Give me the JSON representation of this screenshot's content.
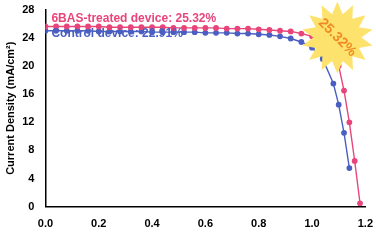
{
  "chart_data": {
    "type": "line",
    "y_label": "Current Density (mA/cm²)",
    "x": [
      0,
      0.04,
      0.08,
      0.12,
      0.16,
      0.2,
      0.24,
      0.28,
      0.32,
      0.36,
      0.4,
      0.44,
      0.48,
      0.52,
      0.56,
      0.6,
      0.64,
      0.68,
      0.72,
      0.76,
      0.8,
      0.84,
      0.88,
      0.92,
      0.96,
      1.0,
      1.04,
      1.08,
      1.1,
      1.12,
      1.14,
      1.16,
      1.18
    ],
    "series": [
      {
        "name": "6BAS-treated device: 25.32%",
        "color": "#e8457a",
        "marker": "circle",
        "values": [
          25.6,
          25.6,
          25.6,
          25.6,
          25.6,
          25.6,
          25.5,
          25.5,
          25.5,
          25.5,
          25.5,
          25.5,
          25.4,
          25.4,
          25.4,
          25.4,
          25.4,
          25.3,
          25.3,
          25.3,
          25.2,
          25.1,
          25.0,
          24.9,
          24.6,
          24.2,
          23.5,
          22.2,
          20.0,
          16.5,
          12.0,
          6.5,
          0.5
        ]
      },
      {
        "name": "Control device: 22.91%",
        "color": "#4a5fc1",
        "marker": "circle",
        "values": [
          25.0,
          25.0,
          25.0,
          25.0,
          25.0,
          24.9,
          24.9,
          24.9,
          24.9,
          24.9,
          24.8,
          24.8,
          24.8,
          24.8,
          24.8,
          24.7,
          24.7,
          24.7,
          24.6,
          24.6,
          24.5,
          24.4,
          24.2,
          23.9,
          23.4,
          22.6,
          21.0,
          17.5,
          14.5,
          10.5,
          5.5,
          null,
          null
        ]
      }
    ],
    "xlim": [
      0,
      1.2
    ],
    "xticks": [
      {
        "value": 0,
        "label": "0.0"
      },
      {
        "value": 0.2,
        "label": "0.2"
      },
      {
        "value": 0.4,
        "label": "0.4"
      },
      {
        "value": 0.6,
        "label": "0.6"
      },
      {
        "value": 0.8,
        "label": "0.8"
      },
      {
        "value": 1.0,
        "label": "1.0"
      },
      {
        "value": 1.2,
        "label": "1.2"
      }
    ],
    "ylim": [
      0,
      28
    ],
    "yticks": [
      0,
      4,
      8,
      12,
      16,
      20,
      24,
      28
    ],
    "grid": false,
    "legend": "top-left",
    "annotations": [
      {
        "text": "25.32%",
        "color": "#f08a24"
      }
    ]
  }
}
